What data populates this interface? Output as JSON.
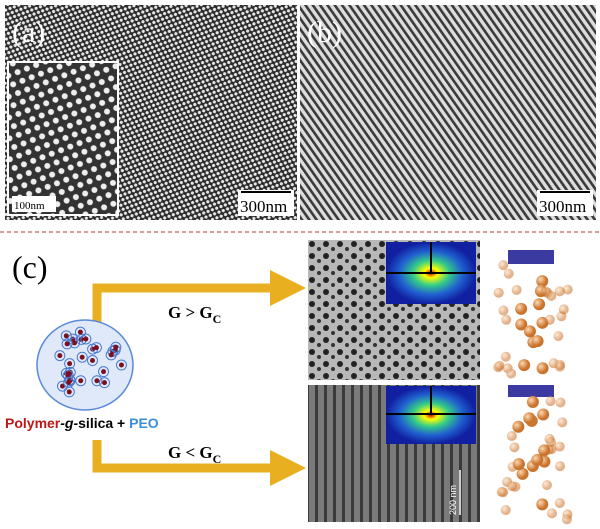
{
  "panels": {
    "a": {
      "label": "(a)",
      "scale_bar": "300nm",
      "inset_scale_bar": "100nm"
    },
    "b": {
      "label": "(b)",
      "scale_bar": "300nm"
    },
    "c": {
      "label": "(c)",
      "upper_condition": {
        "main": "G > G",
        "subscript": "C"
      },
      "lower_condition": {
        "main": "G < G",
        "subscript": "C"
      },
      "material": {
        "polymer": "Polymer",
        "g": "-g-",
        "silica": "silica + ",
        "peo": "PEO"
      },
      "tem_scale_bar": "200 nm"
    }
  }
}
